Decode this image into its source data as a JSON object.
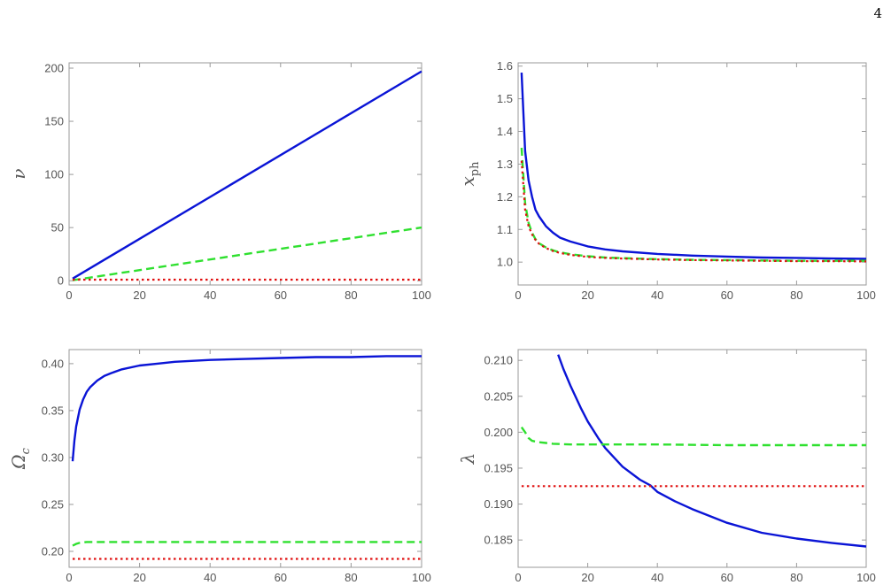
{
  "page": {
    "number": "4"
  },
  "colors": {
    "blue": "#0a14d6",
    "green": "#2fe02f",
    "red": "#e01010",
    "axis": "#9a9a9a",
    "tick_text": "#555555"
  },
  "chart_data": [
    {
      "id": "nu",
      "type": "line",
      "title": "",
      "xlabel": "",
      "ylabel": "ν",
      "ylabel_sub": "",
      "xlim": [
        0,
        100
      ],
      "ylim": [
        -4,
        205
      ],
      "xticks": [
        0,
        20,
        40,
        60,
        80,
        100
      ],
      "yticks": [
        0,
        50,
        100,
        150,
        200
      ],
      "ytick_decimals": 0,
      "series": [
        {
          "color": "blue",
          "style": "solid",
          "x": [
            1,
            100
          ],
          "y": [
            2,
            197
          ]
        },
        {
          "color": "green",
          "style": "dashed",
          "x": [
            1,
            100
          ],
          "y": [
            0.5,
            50
          ]
        },
        {
          "color": "red",
          "style": "dotted",
          "x": [
            1,
            100
          ],
          "y": [
            1,
            1
          ]
        }
      ]
    },
    {
      "id": "xph",
      "type": "line",
      "title": "",
      "xlabel": "",
      "ylabel": "x",
      "ylabel_sub": "ph",
      "xlim": [
        0,
        100
      ],
      "ylim": [
        0.93,
        1.61
      ],
      "xticks": [
        0,
        20,
        40,
        60,
        80,
        100
      ],
      "yticks": [
        1.0,
        1.1,
        1.2,
        1.3,
        1.4,
        1.5,
        1.6
      ],
      "ytick_decimals": 1,
      "series": [
        {
          "color": "blue",
          "style": "solid",
          "x": [
            1,
            2,
            3,
            4,
            5,
            6,
            8,
            10,
            12,
            15,
            20,
            25,
            30,
            40,
            50,
            60,
            70,
            80,
            90,
            100
          ],
          "y": [
            1.58,
            1.34,
            1.25,
            1.2,
            1.16,
            1.14,
            1.11,
            1.09,
            1.075,
            1.063,
            1.048,
            1.039,
            1.033,
            1.025,
            1.02,
            1.017,
            1.014,
            1.013,
            1.011,
            1.01
          ]
        },
        {
          "color": "green",
          "style": "dashed",
          "x": [
            1,
            2,
            3,
            4,
            5,
            6,
            8,
            10,
            12,
            15,
            20,
            25,
            30,
            40,
            50,
            60,
            70,
            80,
            90,
            100
          ],
          "y": [
            1.35,
            1.18,
            1.12,
            1.09,
            1.07,
            1.058,
            1.045,
            1.036,
            1.03,
            1.024,
            1.018,
            1.014,
            1.012,
            1.009,
            1.007,
            1.006,
            1.005,
            1.004,
            1.004,
            1.004
          ]
        },
        {
          "color": "red",
          "style": "dotted",
          "x": [
            1,
            2,
            3,
            4,
            5,
            6,
            8,
            10,
            12,
            15,
            20,
            25,
            30,
            40,
            50,
            60,
            70,
            80,
            90,
            100
          ],
          "y": [
            1.31,
            1.16,
            1.11,
            1.085,
            1.068,
            1.056,
            1.043,
            1.034,
            1.028,
            1.022,
            1.016,
            1.013,
            1.011,
            1.008,
            1.006,
            1.005,
            1.004,
            1.003,
            1.003,
            1.002
          ]
        }
      ]
    },
    {
      "id": "omega",
      "type": "line",
      "title": "",
      "xlabel": "",
      "ylabel": "Ω",
      "ylabel_sub": "c",
      "xlim": [
        0,
        100
      ],
      "ylim": [
        0.183,
        0.415
      ],
      "xticks": [
        0,
        20,
        40,
        60,
        80,
        100
      ],
      "yticks": [
        0.2,
        0.25,
        0.3,
        0.35,
        0.4
      ],
      "ytick_decimals": 2,
      "series": [
        {
          "color": "blue",
          "style": "solid",
          "x": [
            1,
            1.5,
            2,
            3,
            4,
            5,
            6,
            8,
            10,
            12,
            15,
            20,
            25,
            30,
            40,
            50,
            60,
            70,
            80,
            90,
            100
          ],
          "y": [
            0.296,
            0.318,
            0.333,
            0.351,
            0.362,
            0.37,
            0.375,
            0.382,
            0.387,
            0.39,
            0.394,
            0.398,
            0.4,
            0.402,
            0.404,
            0.405,
            0.406,
            0.407,
            0.407,
            0.408,
            0.408
          ]
        },
        {
          "color": "green",
          "style": "dashed",
          "x": [
            1,
            2,
            3,
            5,
            10,
            20,
            40,
            60,
            80,
            100
          ],
          "y": [
            0.206,
            0.208,
            0.209,
            0.21,
            0.21,
            0.21,
            0.21,
            0.21,
            0.21,
            0.21
          ]
        },
        {
          "color": "red",
          "style": "dotted",
          "x": [
            1,
            100
          ],
          "y": [
            0.192,
            0.192
          ]
        }
      ]
    },
    {
      "id": "lambda",
      "type": "line",
      "title": "",
      "xlabel": "",
      "ylabel": "λ",
      "ylabel_sub": "",
      "xlim": [
        0,
        100
      ],
      "ylim": [
        0.1812,
        0.2115
      ],
      "xticks": [
        0,
        20,
        40,
        60,
        80,
        100
      ],
      "yticks": [
        0.185,
        0.19,
        0.195,
        0.2,
        0.205,
        0.21
      ],
      "ytick_decimals": 3,
      "series": [
        {
          "color": "blue",
          "style": "solid",
          "x": [
            11.5,
            13,
            15,
            18,
            20,
            23,
            25,
            30,
            35,
            38,
            40,
            45,
            50,
            60,
            70,
            80,
            90,
            100
          ],
          "y": [
            0.2108,
            0.2088,
            0.2065,
            0.2034,
            0.2015,
            0.1992,
            0.1978,
            0.1952,
            0.1934,
            0.1926,
            0.1917,
            0.1904,
            0.1893,
            0.1874,
            0.186,
            0.1852,
            0.1846,
            0.1841
          ]
        },
        {
          "color": "green",
          "style": "dashed",
          "x": [
            1,
            2,
            3,
            4,
            6,
            8,
            10,
            15,
            20,
            40,
            60,
            80,
            100
          ],
          "y": [
            0.2007,
            0.2,
            0.1992,
            0.1988,
            0.1986,
            0.1985,
            0.1984,
            0.1983,
            0.1983,
            0.1983,
            0.1982,
            0.1982,
            0.1982
          ]
        },
        {
          "color": "red",
          "style": "dotted",
          "x": [
            1,
            100
          ],
          "y": [
            0.1925,
            0.1925
          ]
        }
      ]
    }
  ]
}
